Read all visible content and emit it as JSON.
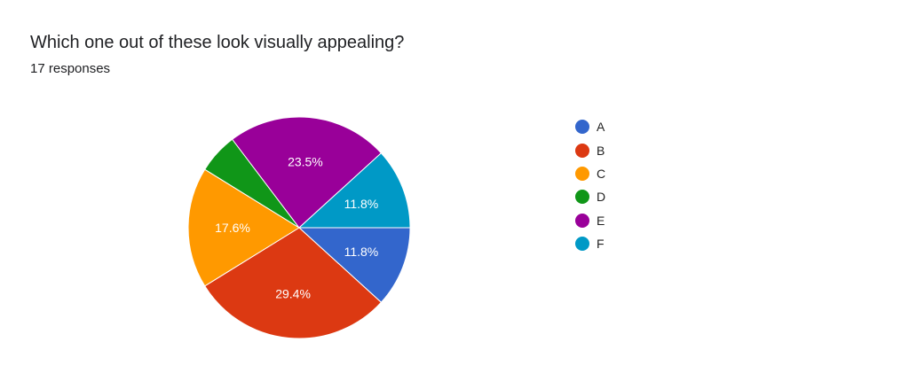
{
  "header": {
    "title": "Which one out of these look visually appealing?",
    "subtitle": "17 responses"
  },
  "chart_data": {
    "type": "pie",
    "title": "Which one out of these look visually appealing?",
    "total_responses": 17,
    "slices": [
      {
        "label": "A",
        "count": 2,
        "percent": 11.8,
        "display": "11.8%",
        "color": "#3366cc"
      },
      {
        "label": "B",
        "count": 5,
        "percent": 29.4,
        "display": "29.4%",
        "color": "#dc3912"
      },
      {
        "label": "C",
        "count": 3,
        "percent": 17.6,
        "display": "17.6%",
        "color": "#ff9900"
      },
      {
        "label": "D",
        "count": 1,
        "percent": 5.9,
        "display": "",
        "color": "#109618"
      },
      {
        "label": "E",
        "count": 4,
        "percent": 23.5,
        "display": "23.5%",
        "color": "#990099"
      },
      {
        "label": "F",
        "count": 2,
        "percent": 11.8,
        "display": "11.8%",
        "color": "#0099c6"
      }
    ],
    "legend_position": "right",
    "start_angle": "3 o'clock, clockwise"
  }
}
